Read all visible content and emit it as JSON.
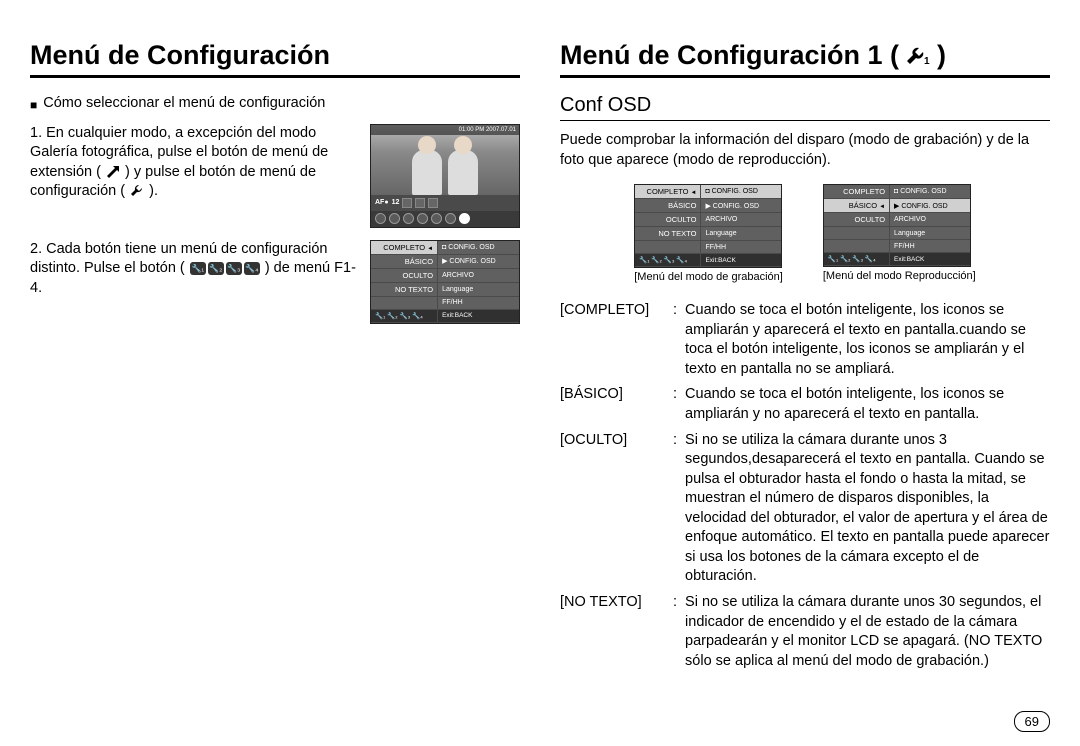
{
  "page_number": "69",
  "left": {
    "title": "Menú de Configuración",
    "intro_bullet": "Cómo seleccionar el menú de configuración",
    "step1_a": "1. En cualquier modo, a excepción del modo Galería fotográfica, pulse el botón de menú de extensión (",
    "step1_b": ") y pulse el botón de menú de configuración (",
    "step1_c": ").",
    "step2_a": "2. Cada botón tiene un menú de configuración distinto. Pulse el botón (",
    "step2_b": ") de menú F1-4.",
    "lcd": {
      "datetime": "01:00 PM 2007.07.01",
      "af": "AF●",
      "count": "12",
      "side": [
        "AWB",
        "ISO",
        "A"
      ]
    },
    "menu": {
      "rows": [
        {
          "l": "COMPLETO",
          "r": "CONFIG. OSD",
          "lsel": true,
          "rsel": false,
          "arrow": true,
          "ricon": "◘"
        },
        {
          "l": "BÁSICO",
          "r": "CONFIG. OSD",
          "lsel": false,
          "rsel": false,
          "ricon": "▶"
        },
        {
          "l": "OCULTO",
          "r": "ARCHIVO",
          "lsel": false,
          "rsel": false
        },
        {
          "l": "NO TEXTO",
          "r": "Language",
          "lsel": false,
          "rsel": false
        },
        {
          "l": "",
          "r": "FF/HH",
          "lsel": false,
          "rsel": false
        }
      ],
      "footer_icons": "🔧₁ 🔧₂ 🔧₃ 🔧₄",
      "footer_exit": "Exit:BACK"
    }
  },
  "right": {
    "title": "Menú de Configuración 1 (",
    "title_suffix": ")",
    "section": "Conf OSD",
    "para": "Puede comprobar la información del disparo (modo de grabación) y de la foto que aparece (modo de reproducción).",
    "menu_rec": {
      "rows": [
        {
          "l": "COMPLETO",
          "r": "CONFIG. OSD",
          "lsel": true,
          "rsel": true,
          "arrow": true,
          "ricon": "◘"
        },
        {
          "l": "BÁSICO",
          "r": "CONFIG. OSD",
          "lsel": false,
          "rsel": false,
          "ricon": "▶"
        },
        {
          "l": "OCULTO",
          "r": "ARCHIVO",
          "lsel": false,
          "rsel": false
        },
        {
          "l": "NO TEXTO",
          "r": "Language",
          "lsel": false,
          "rsel": false
        },
        {
          "l": "",
          "r": "FF/HH",
          "lsel": false,
          "rsel": false
        }
      ],
      "footer_exit": "Exit:BACK",
      "caption": "[Menú del modo de grabación]"
    },
    "menu_play": {
      "rows": [
        {
          "l": "COMPLETO",
          "r": "CONFIG. OSD",
          "lsel": false,
          "rsel": false,
          "ricon": "◘"
        },
        {
          "l": "BÁSICO",
          "r": "CONFIG. OSD",
          "lsel": true,
          "rsel": true,
          "arrow": true,
          "ricon": "▶"
        },
        {
          "l": "OCULTO",
          "r": "ARCHIVO",
          "lsel": false,
          "rsel": false
        },
        {
          "l": "",
          "r": "Language",
          "lsel": false,
          "rsel": false
        },
        {
          "l": "",
          "r": "FF/HH",
          "lsel": false,
          "rsel": false
        }
      ],
      "footer_exit": "Exit:BACK",
      "caption": "[Menú del modo Reproducción]"
    },
    "defs": [
      {
        "term": "[COMPLETO]",
        "body": "Cuando se toca el botón inteligente, los iconos se ampliarán y aparecerá el texto en pantalla.cuando se toca el botón inteligente, los iconos se ampliarán y el texto en pantalla no se ampliará."
      },
      {
        "term": "[BÁSICO]",
        "body": "Cuando se toca el botón inteligente, los iconos se ampliarán y no aparecerá el texto en pantalla."
      },
      {
        "term": "[OCULTO]",
        "body": "Si no se utiliza la cámara durante unos 3 segundos,desaparecerá el texto en pantalla. Cuando se pulsa el obturador hasta el fondo o hasta la mitad, se muestran el número de disparos disponibles, la velocidad del obturador, el valor de apertura y el área de enfoque automático. El texto en pantalla puede aparecer si usa los botones de la cámara excepto el de obturación."
      },
      {
        "term": "[NO TEXTO]",
        "body": "Si no se utiliza la cámara durante unos 30 segundos, el indicador de encendido y el de estado de la cámara parpadearán y el monitor LCD se apagará. (NO TEXTO sólo se aplica al menú del modo de grabación.)"
      }
    ]
  },
  "colors": {
    "text": "#000000",
    "menu_bg": "#606060",
    "menu_sel": "#d0d0d0",
    "menu_dark": "#303030"
  }
}
